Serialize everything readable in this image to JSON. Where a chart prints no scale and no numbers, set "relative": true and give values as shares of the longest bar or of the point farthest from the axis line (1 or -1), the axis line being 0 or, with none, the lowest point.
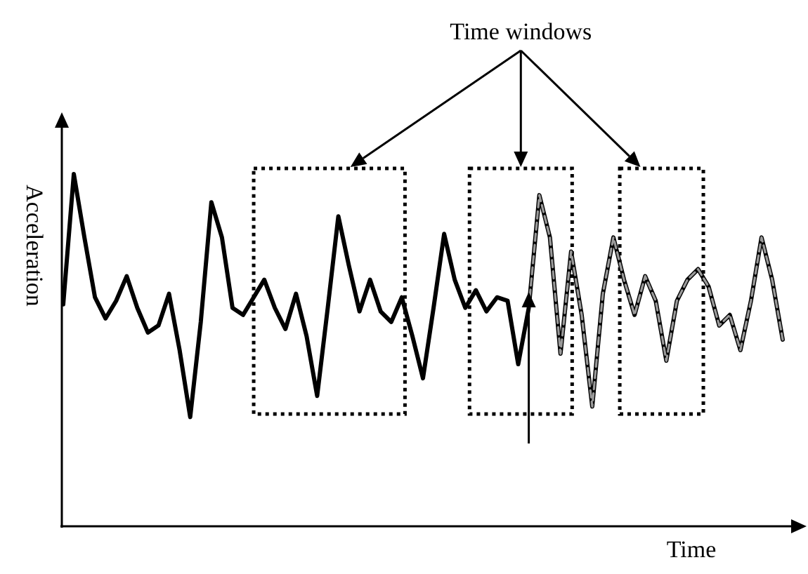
{
  "chart_data": {
    "type": "line",
    "relative": true,
    "xlabel": "Time",
    "ylabel": "Acceleration",
    "annotations": [
      "Time windows"
    ],
    "categories": [
      null,
      null,
      null,
      null,
      null,
      null,
      null,
      null,
      null,
      null,
      null,
      null,
      null,
      null,
      null,
      null,
      null,
      null,
      null,
      null,
      null,
      null,
      null,
      null,
      null,
      null,
      null,
      null,
      null,
      null,
      null,
      null,
      null,
      null,
      null,
      null,
      null,
      null,
      null,
      null,
      null,
      null,
      null,
      null,
      null,
      null,
      null,
      null,
      null,
      null,
      null,
      null,
      null,
      null,
      null,
      null,
      null,
      null,
      null,
      null,
      null,
      null,
      null,
      null,
      null,
      null,
      null,
      null,
      null
    ],
    "series": [
      {
        "color": "#000000",
        "line_style": "solid",
        "values": [
          0.63,
          1.0,
          0.82,
          0.65,
          0.59,
          0.64,
          0.71,
          0.62,
          0.55,
          0.57,
          0.66,
          0.5,
          0.31,
          0.58,
          0.92,
          0.82,
          0.62,
          0.6,
          0.65,
          0.7,
          0.62,
          0.56,
          0.66,
          0.54,
          0.37,
          0.62,
          0.88,
          0.74,
          0.61,
          0.7,
          0.61,
          0.58,
          0.65,
          0.54,
          0.42,
          0.62,
          0.83,
          0.7,
          0.62,
          0.67,
          0.61,
          0.65,
          0.64,
          0.46,
          0.62,
          0.94,
          0.82,
          0.49,
          0.78,
          0.6,
          0.34,
          0.66,
          0.82,
          0.7,
          0.6,
          0.71,
          0.64,
          0.47,
          0.64,
          0.7,
          0.73,
          0.68,
          0.57,
          0.6,
          0.5,
          0.64,
          0.82,
          0.7,
          0.53
        ]
      },
      {
        "color": "#9a9a9a",
        "line_style": "dashed",
        "values": [
          null,
          null,
          null,
          null,
          null,
          null,
          null,
          null,
          null,
          null,
          null,
          null,
          null,
          null,
          null,
          null,
          null,
          null,
          null,
          null,
          null,
          null,
          null,
          null,
          null,
          null,
          null,
          null,
          null,
          null,
          null,
          null,
          null,
          null,
          null,
          null,
          null,
          null,
          null,
          null,
          null,
          null,
          null,
          null,
          0.62,
          0.94,
          0.82,
          0.49,
          0.78,
          0.6,
          0.34,
          0.66,
          0.82,
          0.7,
          0.6,
          0.71,
          0.64,
          0.47,
          0.64,
          0.7,
          0.73,
          0.68,
          0.57,
          0.6,
          0.5,
          0.64,
          0.82,
          0.7,
          0.53
        ]
      }
    ]
  }
}
